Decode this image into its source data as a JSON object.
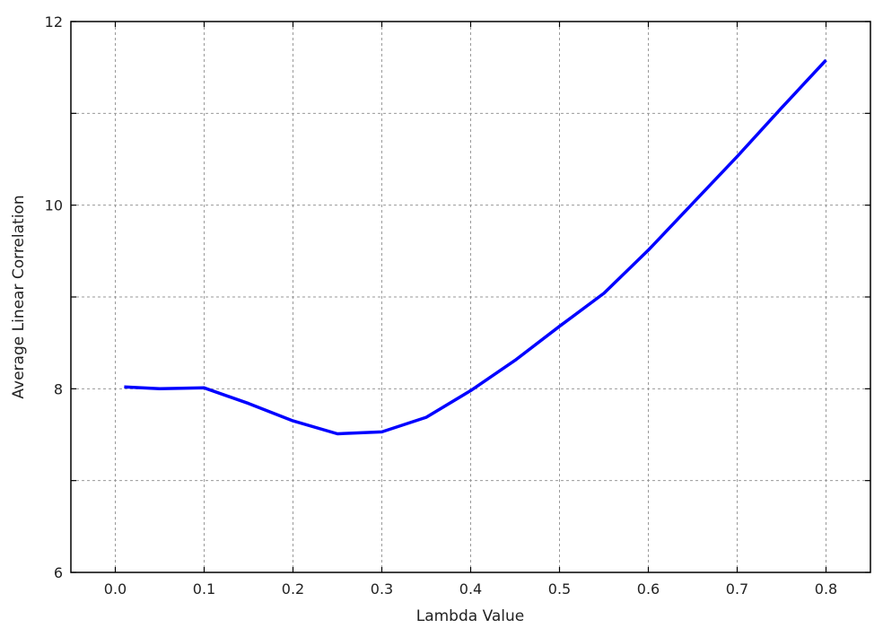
{
  "chart_data": {
    "type": "line",
    "title": "",
    "xlabel": "Lambda Value",
    "ylabel": "Average Linear Correlation",
    "xlim": [
      -0.05,
      0.85
    ],
    "ylim": [
      6,
      12
    ],
    "xticks": [
      0.0,
      0.1,
      0.2,
      0.3,
      0.4,
      0.5,
      0.6,
      0.7,
      0.8
    ],
    "xtick_labels": [
      "0.0",
      "0.1",
      "0.2",
      "0.3",
      "0.4",
      "0.5",
      "0.6",
      "0.7",
      "0.8"
    ],
    "yticks": [
      6,
      7,
      8,
      9,
      10,
      11,
      12
    ],
    "ytick_labels": [
      "6",
      "",
      "8",
      "",
      "10",
      "",
      "12"
    ],
    "grid": true,
    "series": [
      {
        "color": "#0000ff",
        "x": [
          0.01,
          0.05,
          0.1,
          0.15,
          0.2,
          0.25,
          0.3,
          0.35,
          0.4,
          0.45,
          0.5,
          0.55,
          0.6,
          0.65,
          0.7,
          0.75,
          0.8
        ],
        "y": [
          8.02,
          8.0,
          8.01,
          7.84,
          7.65,
          7.51,
          7.53,
          7.69,
          7.98,
          8.31,
          8.68,
          9.04,
          9.51,
          10.02,
          10.53,
          11.06,
          11.58
        ]
      }
    ]
  }
}
